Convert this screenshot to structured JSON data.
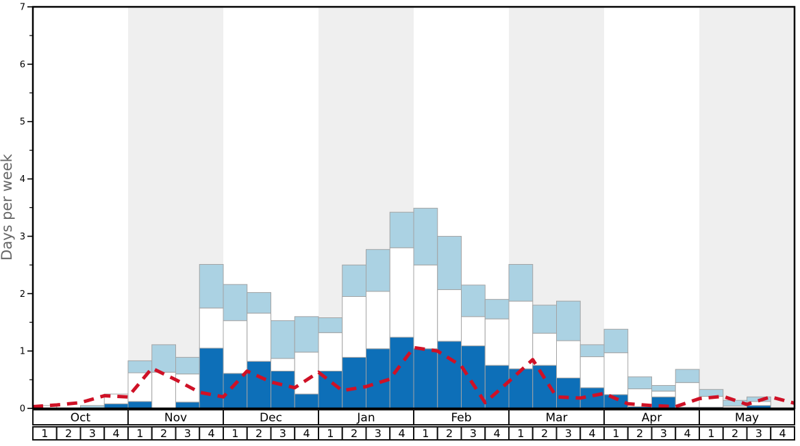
{
  "chart_data": {
    "type": "bar",
    "title": "",
    "ylabel": "Days per week",
    "ylim": [
      0,
      7
    ],
    "y_major_ticks": [
      0,
      1,
      2,
      3,
      4,
      5,
      6,
      7
    ],
    "y_minor_tick_step": 0.5,
    "grid": false,
    "legend": "none",
    "months": [
      "Oct",
      "Nov",
      "Dec",
      "Jan",
      "Feb",
      "Mar",
      "Apr",
      "May"
    ],
    "shaded_months": [
      "Nov",
      "Jan",
      "Mar",
      "May"
    ],
    "week_labels": [
      "1",
      "2",
      "3",
      "4"
    ],
    "weeks_per_month": 4,
    "stacked_bars_cumulative_tops": {
      "note": "32 weekly bars (Oct wk1 .. May wk4); values are cumulative stack tops in days/week",
      "dark_blue": [
        0,
        0,
        0,
        0.08,
        0.12,
        0,
        0.11,
        1.05,
        0.61,
        0.82,
        0.65,
        0.25,
        0.65,
        0.89,
        1.04,
        1.24,
        1.04,
        1.17,
        1.09,
        0.75,
        0.69,
        0.75,
        0.53,
        0.36,
        0.24,
        0.03,
        0.2,
        0.02,
        0.02,
        0,
        0.05,
        0
      ],
      "white": [
        0.05,
        0,
        0,
        0.25,
        0.62,
        0.63,
        0.6,
        1.75,
        1.53,
        1.66,
        0.87,
        0.98,
        1.32,
        1.95,
        2.04,
        2.8,
        2.5,
        2.07,
        1.6,
        1.56,
        1.87,
        1.31,
        1.18,
        0.9,
        0.97,
        0.34,
        0.3,
        0.45,
        0.21,
        0.04,
        0.12,
        0
      ],
      "light_blue": [
        0.05,
        0,
        0.05,
        0.25,
        0.83,
        1.11,
        0.89,
        2.51,
        2.16,
        2.02,
        1.53,
        1.6,
        1.58,
        2.5,
        2.77,
        3.42,
        3.49,
        3.0,
        2.15,
        1.9,
        2.51,
        1.8,
        1.87,
        1.11,
        1.38,
        0.55,
        0.4,
        0.68,
        0.33,
        0.14,
        0.2,
        0
      ]
    },
    "line_series": {
      "name": "red-dashed-line",
      "style": "dashed",
      "x_positions": "week-start boundaries, 33 points from left axis to right axis",
      "values": [
        0.03,
        0.06,
        0.1,
        0.22,
        0.2,
        0.7,
        0.5,
        0.28,
        0.2,
        0.65,
        0.46,
        0.36,
        0.63,
        0.31,
        0.38,
        0.51,
        1.06,
        1.0,
        0.74,
        0.1,
        0.47,
        0.85,
        0.2,
        0.18,
        0.26,
        0.08,
        0.05,
        0.03,
        0.17,
        0.21,
        0.07,
        0.2,
        0.09
      ]
    },
    "colors": {
      "dark_blue": "#0d6fb8",
      "light_blue": "#abd2e3",
      "bar_white": "#ffffff",
      "bar_border": "#a3a3a3",
      "red_line": "#cf1126",
      "month_stripe": "#efefef",
      "axis_black": "#000000",
      "cell_border": "#111111",
      "ylabel_gray": "#666666"
    }
  }
}
